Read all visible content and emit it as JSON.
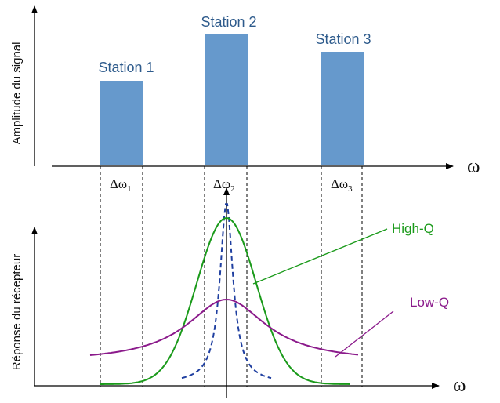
{
  "top_panel": {
    "ylabel": "Amplitude du signal",
    "xlabel": "ω",
    "bars": [
      {
        "label": "Station 1",
        "relative_height": 0.66
      },
      {
        "label": "Station 2",
        "relative_height": 1.0
      },
      {
        "label": "Station 3",
        "relative_height": 0.86
      }
    ],
    "bandwidths": [
      {
        "symbol": "Δω",
        "subscript": "1"
      },
      {
        "symbol": "Δω",
        "subscript": "2"
      },
      {
        "symbol": "Δω",
        "subscript": "3"
      }
    ]
  },
  "bottom_panel": {
    "ylabel": "Réponse du récepteur",
    "xlabel": "ω",
    "curves": [
      {
        "name": "High-Q",
        "color": "#1a9a1a"
      },
      {
        "name": "Low-Q",
        "color": "#8b1a8b"
      },
      {
        "name": "",
        "color": "#1f3fa0",
        "style": "dashed"
      }
    ]
  },
  "colors": {
    "bar": "#6699cc",
    "bar_label": "#2e5b8c",
    "axis": "#000000",
    "high_q": "#1a9a1a",
    "low_q": "#8b1a8b",
    "ideal": "#1f3fa0"
  }
}
